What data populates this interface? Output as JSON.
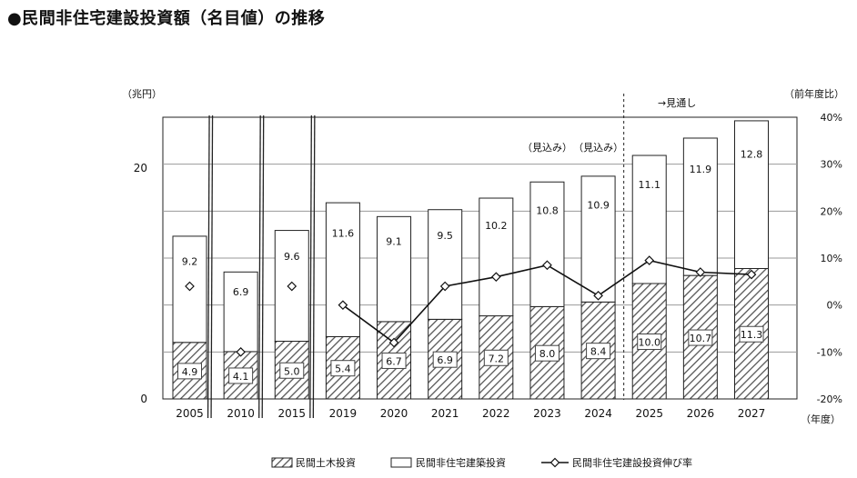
{
  "page": {
    "title": "●民間非住宅建設投資額（名目値）の推移"
  },
  "chart_data": {
    "type": "bar",
    "title": "●民間非住宅建設投資額（名目値）の推移",
    "categories": [
      "2005",
      "2010",
      "2015",
      "2019",
      "2020",
      "2021",
      "2022",
      "2023",
      "2024",
      "2025",
      "2026",
      "2027"
    ],
    "series": [
      {
        "name": "民間土木投資",
        "kind": "bar",
        "stack": "total",
        "pattern": "hatch",
        "values": [
          4.9,
          4.1,
          5.0,
          5.4,
          6.7,
          6.9,
          7.2,
          8.0,
          8.4,
          10.0,
          10.7,
          11.3
        ]
      },
      {
        "name": "民間非住宅建築投資",
        "kind": "bar",
        "stack": "total",
        "pattern": "white",
        "values": [
          9.2,
          6.9,
          9.6,
          11.6,
          9.1,
          9.5,
          10.2,
          10.8,
          10.9,
          11.1,
          11.9,
          12.8
        ]
      },
      {
        "name": "民間非住宅建設投資伸び率",
        "kind": "line",
        "axis": "right",
        "values": [
          4,
          -10,
          4,
          0,
          -8,
          4,
          6,
          8.5,
          2,
          9.5,
          7,
          6.5
        ]
      }
    ],
    "ylabel": "（兆円）",
    "y2label": "（前年度比）",
    "xlabel": "（年度）",
    "ylim": [
      0,
      25
    ],
    "y2lim": [
      -20,
      40
    ],
    "y_ticks": [
      "0",
      "20"
    ],
    "y2_ticks": [
      "40%",
      "30%",
      "20%",
      "10%",
      "0%",
      "-10%",
      "-20%"
    ],
    "annotations": {
      "mikomi_1": "（見込み）",
      "mikomi_2": "（見込み）",
      "outlook": "→見通し"
    },
    "axis_breaks_after": [
      "2005",
      "2010",
      "2015"
    ],
    "grid": true,
    "legend_position": "bottom"
  }
}
